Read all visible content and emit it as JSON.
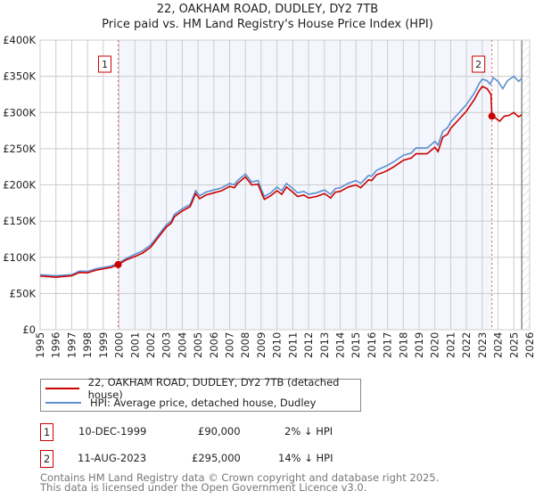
{
  "chart_data": {
    "type": "line",
    "title": "22, OAKHAM ROAD, DUDLEY, DY2 7TB",
    "subtitle": "Price paid vs. HM Land Registry's House Price Index (HPI)",
    "xlim": [
      1995,
      2026
    ],
    "ylim": [
      0,
      400000
    ],
    "yticks": [
      {
        "v": 0,
        "label": "£0"
      },
      {
        "v": 50000,
        "label": "£50K"
      },
      {
        "v": 100000,
        "label": "£100K"
      },
      {
        "v": 150000,
        "label": "£150K"
      },
      {
        "v": 200000,
        "label": "£200K"
      },
      {
        "v": 250000,
        "label": "£250K"
      },
      {
        "v": 300000,
        "label": "£300K"
      },
      {
        "v": 350000,
        "label": "£350K"
      },
      {
        "v": 400000,
        "label": "£400K"
      }
    ],
    "xticks": [
      "1995",
      "1996",
      "1997",
      "1998",
      "1999",
      "2000",
      "2001",
      "2002",
      "2003",
      "2004",
      "2005",
      "2006",
      "2007",
      "2008",
      "2009",
      "2010",
      "2011",
      "2012",
      "2013",
      "2014",
      "2015",
      "2016",
      "2017",
      "2018",
      "2019",
      "2020",
      "2021",
      "2022",
      "2023",
      "2024",
      "2025",
      "2026"
    ],
    "grid": true,
    "shaded_range": [
      1999.94,
      2023.61
    ],
    "forecast_from": 2025.5,
    "series": [
      {
        "name": "22, OAKHAM ROAD, DUDLEY, DY2 7TB (detached house)",
        "color": "#cc0000",
        "points": [
          [
            1995,
            74000
          ],
          [
            1996,
            72500
          ],
          [
            1997,
            74500
          ],
          [
            1997.5,
            79000
          ],
          [
            1998,
            78500
          ],
          [
            1998.5,
            82000
          ],
          [
            1999,
            84000
          ],
          [
            1999.5,
            86000
          ],
          [
            1999.94,
            90000
          ],
          [
            2000.5,
            97000
          ],
          [
            2001,
            101000
          ],
          [
            2001.5,
            106000
          ],
          [
            2002,
            114000
          ],
          [
            2002.5,
            128000
          ],
          [
            2003,
            142000
          ],
          [
            2003.3,
            147000
          ],
          [
            2003.5,
            156000
          ],
          [
            2004,
            164000
          ],
          [
            2004.5,
            170000
          ],
          [
            2004.85,
            188000
          ],
          [
            2005.1,
            181000
          ],
          [
            2005.5,
            186000
          ],
          [
            2006,
            189000
          ],
          [
            2006.5,
            192000
          ],
          [
            2007,
            198000
          ],
          [
            2007.3,
            196000
          ],
          [
            2007.5,
            202000
          ],
          [
            2008,
            211000
          ],
          [
            2008.4,
            200000
          ],
          [
            2008.8,
            201000
          ],
          [
            2009,
            190000
          ],
          [
            2009.2,
            180000
          ],
          [
            2009.6,
            185000
          ],
          [
            2010,
            192000
          ],
          [
            2010.3,
            187000
          ],
          [
            2010.6,
            197000
          ],
          [
            2011,
            190000
          ],
          [
            2011.3,
            184000
          ],
          [
            2011.7,
            186000
          ],
          [
            2012,
            182000
          ],
          [
            2012.5,
            184000
          ],
          [
            2013,
            188000
          ],
          [
            2013.4,
            182000
          ],
          [
            2013.7,
            190000
          ],
          [
            2014,
            191000
          ],
          [
            2014.5,
            197000
          ],
          [
            2015,
            200000
          ],
          [
            2015.3,
            196000
          ],
          [
            2015.8,
            207000
          ],
          [
            2016,
            206000
          ],
          [
            2016.3,
            214000
          ],
          [
            2016.7,
            217000
          ],
          [
            2017,
            220000
          ],
          [
            2017.4,
            225000
          ],
          [
            2017.8,
            231000
          ],
          [
            2018,
            234000
          ],
          [
            2018.5,
            237000
          ],
          [
            2018.8,
            243000
          ],
          [
            2019.5,
            243000
          ],
          [
            2020,
            252000
          ],
          [
            2020.2,
            246000
          ],
          [
            2020.5,
            266000
          ],
          [
            2020.8,
            270000
          ],
          [
            2021,
            278000
          ],
          [
            2021.5,
            290000
          ],
          [
            2022,
            302000
          ],
          [
            2022.5,
            318000
          ],
          [
            2022.8,
            330000
          ],
          [
            2023,
            336000
          ],
          [
            2023.3,
            333000
          ],
          [
            2023.55,
            325000
          ],
          [
            2023.61,
            295000
          ],
          [
            2023.8,
            293000
          ],
          [
            2024.1,
            288000
          ],
          [
            2024.4,
            295000
          ],
          [
            2024.7,
            296000
          ],
          [
            2025,
            300000
          ],
          [
            2025.3,
            294000
          ],
          [
            2025.5,
            297000
          ]
        ]
      },
      {
        "name": "HPI: Average price, detached house, Dudley",
        "color": "#5b8fd0",
        "points": [
          [
            1995,
            76000
          ],
          [
            1996,
            74500
          ],
          [
            1997,
            76000
          ],
          [
            1997.5,
            81000
          ],
          [
            1998,
            80500
          ],
          [
            1998.5,
            84000
          ],
          [
            1999,
            86000
          ],
          [
            1999.5,
            88000
          ],
          [
            1999.94,
            91800
          ],
          [
            2000.5,
            99000
          ],
          [
            2001,
            104000
          ],
          [
            2001.5,
            109000
          ],
          [
            2002,
            117000
          ],
          [
            2002.5,
            131000
          ],
          [
            2003,
            145000
          ],
          [
            2003.3,
            150000
          ],
          [
            2003.5,
            159000
          ],
          [
            2004,
            167000
          ],
          [
            2004.5,
            173000
          ],
          [
            2004.85,
            192000
          ],
          [
            2005.1,
            185000
          ],
          [
            2005.5,
            190000
          ],
          [
            2006,
            193000
          ],
          [
            2006.5,
            196000
          ],
          [
            2007,
            202000
          ],
          [
            2007.3,
            200000
          ],
          [
            2007.5,
            206000
          ],
          [
            2008,
            215000
          ],
          [
            2008.4,
            204000
          ],
          [
            2008.8,
            206000
          ],
          [
            2009,
            194000
          ],
          [
            2009.2,
            184000
          ],
          [
            2009.6,
            189000
          ],
          [
            2010,
            197000
          ],
          [
            2010.3,
            192000
          ],
          [
            2010.6,
            202000
          ],
          [
            2011,
            195000
          ],
          [
            2011.3,
            189000
          ],
          [
            2011.7,
            191000
          ],
          [
            2012,
            187000
          ],
          [
            2012.5,
            189000
          ],
          [
            2013,
            193000
          ],
          [
            2013.4,
            187000
          ],
          [
            2013.7,
            195000
          ],
          [
            2014,
            196000
          ],
          [
            2014.5,
            202000
          ],
          [
            2015,
            206000
          ],
          [
            2015.3,
            202000
          ],
          [
            2015.8,
            213000
          ],
          [
            2016,
            212000
          ],
          [
            2016.3,
            220000
          ],
          [
            2016.7,
            224000
          ],
          [
            2017,
            227000
          ],
          [
            2017.4,
            232000
          ],
          [
            2017.8,
            238000
          ],
          [
            2018,
            241000
          ],
          [
            2018.5,
            244000
          ],
          [
            2018.8,
            251000
          ],
          [
            2019.5,
            251000
          ],
          [
            2020,
            260000
          ],
          [
            2020.2,
            255000
          ],
          [
            2020.5,
            274000
          ],
          [
            2020.8,
            279000
          ],
          [
            2021,
            287000
          ],
          [
            2021.5,
            299000
          ],
          [
            2022,
            311000
          ],
          [
            2022.5,
            327000
          ],
          [
            2022.8,
            340000
          ],
          [
            2023,
            346000
          ],
          [
            2023.3,
            344000
          ],
          [
            2023.5,
            339000
          ],
          [
            2023.7,
            348000
          ],
          [
            2024,
            343000
          ],
          [
            2024.3,
            333000
          ],
          [
            2024.6,
            344000
          ],
          [
            2025,
            350000
          ],
          [
            2025.3,
            343000
          ],
          [
            2025.5,
            347000
          ]
        ]
      }
    ],
    "sales": [
      {
        "label": "1",
        "x": 1999.94,
        "y": 90000
      },
      {
        "label": "2",
        "x": 2023.61,
        "y": 295000
      }
    ]
  },
  "legend": {
    "red": "22, OAKHAM ROAD, DUDLEY, DY2 7TB (detached house)",
    "blue": "HPI: Average price, detached house, Dudley"
  },
  "transactions": [
    {
      "num": "1",
      "date": "10-DEC-1999",
      "price": "£90,000",
      "hpi": "2% ↓ HPI"
    },
    {
      "num": "2",
      "date": "11-AUG-2023",
      "price": "£295,000",
      "hpi": "14% ↓ HPI"
    }
  ],
  "footer": {
    "line1": "Contains HM Land Registry data © Crown copyright and database right 2025.",
    "line2": "This data is licensed under the Open Government Licence v3.0."
  }
}
